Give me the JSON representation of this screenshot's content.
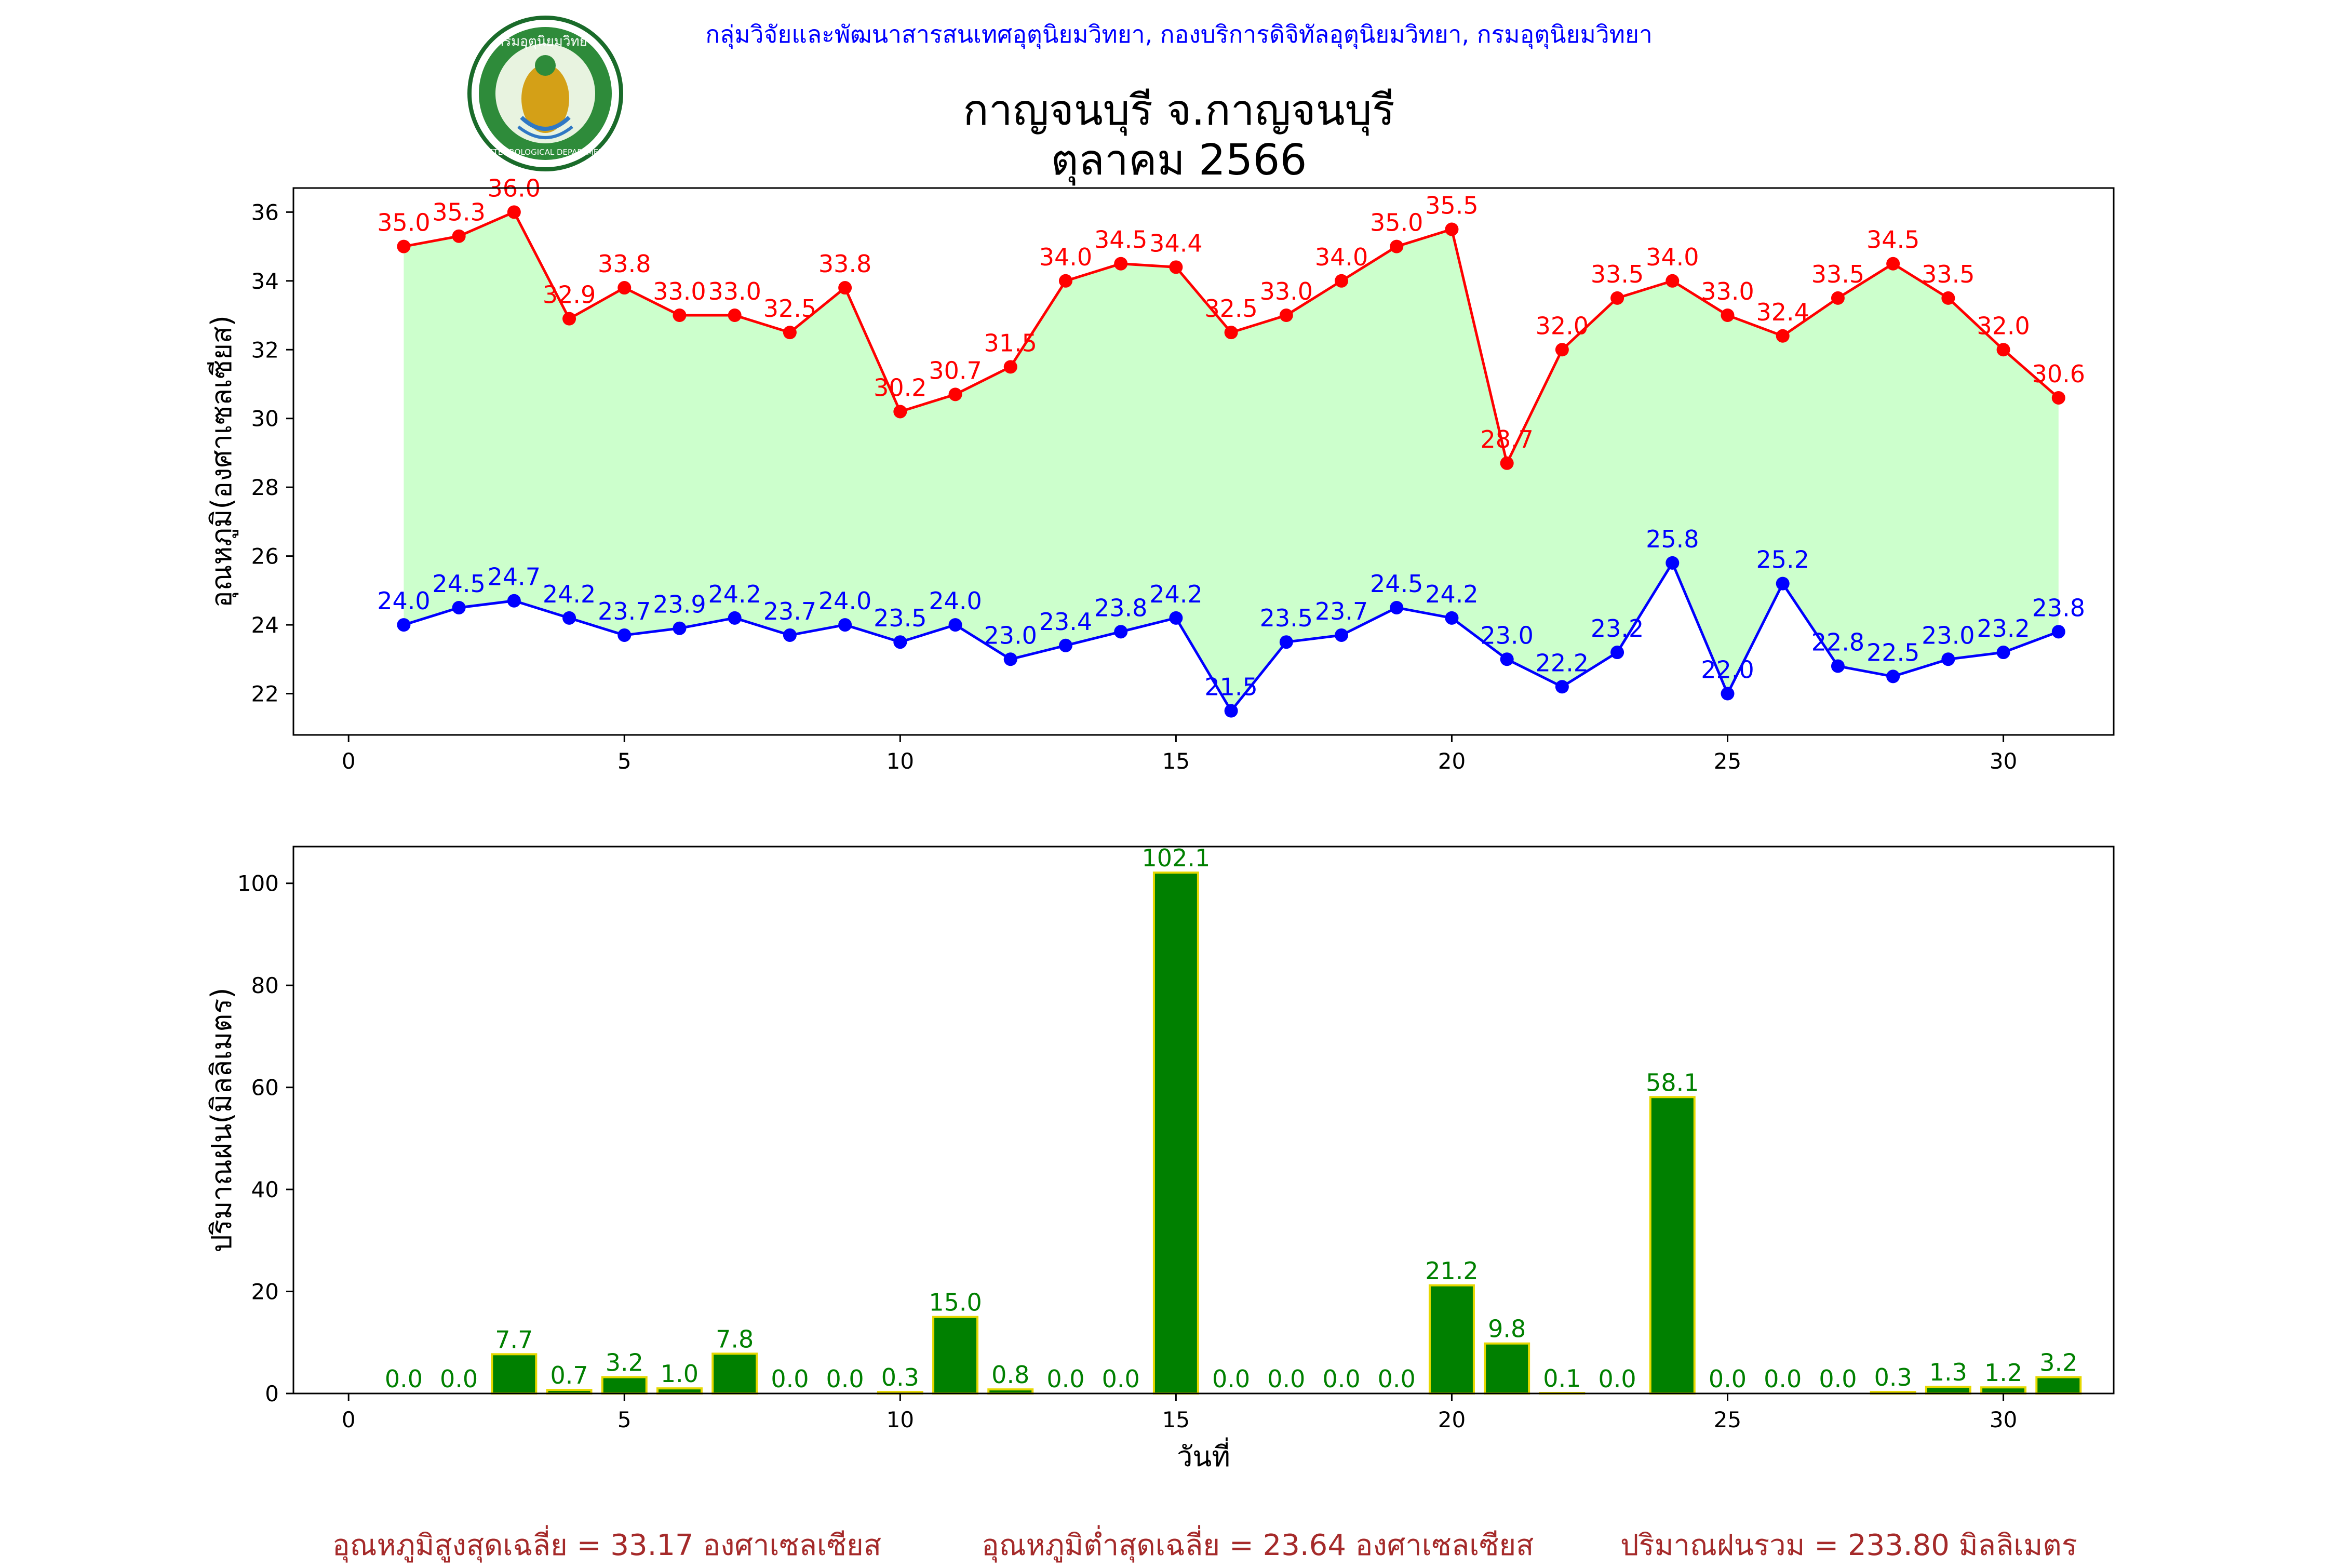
{
  "header": {
    "credit": "กลุ่มวิจัยและพัฒนาสารสนเทศอุตุนิยมวิทยา, กองบริการดิจิทัลอุตุนิยมวิทยา, กรมอุตุนิยมวิทยา",
    "title_line1": "กาญจนบุรี จ.กาญจนบุรี",
    "title_line2": "ตุลาคม 2566",
    "logo_text": "กรมอุตุนิยมวิทยา METEOROLOGICAL DEPARTMENT"
  },
  "footer": {
    "avg_max": "อุณหภูมิสูงสุดเฉลี่ย = 33.17 องศาเซลเซียส",
    "avg_min": "อุณหภูมิต่ำสุดเฉลี่ย = 23.64 องศาเซลเซียส",
    "total_rain": "ปริมาณฝนรวม = 233.80 มิลลิเมตร"
  },
  "colors": {
    "max": "#ff0000",
    "min": "#0000ff",
    "fill": "#ccffcc",
    "rain": "#008000",
    "rain_edge": "#e6d800",
    "footer": "#a52a2a"
  },
  "chart_data": [
    {
      "type": "line",
      "ylabel": "อุณหภูมิ(องศาเซลเซียส)",
      "xlabel": "",
      "xlim": [
        -1,
        32
      ],
      "ylim": [
        20.8,
        36.7
      ],
      "xticks": [
        0,
        5,
        10,
        15,
        20,
        25,
        30
      ],
      "yticks": [
        22,
        24,
        26,
        28,
        30,
        32,
        34,
        36
      ],
      "x": [
        1,
        2,
        3,
        4,
        5,
        6,
        7,
        8,
        9,
        10,
        11,
        12,
        13,
        14,
        15,
        16,
        17,
        18,
        19,
        20,
        21,
        22,
        23,
        24,
        25,
        26,
        27,
        28,
        29,
        30,
        31
      ],
      "series": [
        {
          "values": [
            35.0,
            35.3,
            36.0,
            32.9,
            33.8,
            33.0,
            33.0,
            32.5,
            33.8,
            30.2,
            30.7,
            31.5,
            34.0,
            34.5,
            34.4,
            32.5,
            33.0,
            34.0,
            35.0,
            35.5,
            28.7,
            32.0,
            33.5,
            34.0,
            33.0,
            32.4,
            33.5,
            34.5,
            33.5,
            32.0,
            30.6
          ]
        },
        {
          "values": [
            24.0,
            24.5,
            24.7,
            24.2,
            23.7,
            23.9,
            24.2,
            23.7,
            24.0,
            23.5,
            24.0,
            23.0,
            23.4,
            23.8,
            24.2,
            21.5,
            23.5,
            23.7,
            24.5,
            24.2,
            23.0,
            22.2,
            23.2,
            25.8,
            22.0,
            25.2,
            22.8,
            22.5,
            23.0,
            23.2,
            23.8
          ]
        }
      ]
    },
    {
      "type": "bar",
      "ylabel": "ปริมาณฝน(มิลลิเมตร)",
      "xlabel": "วันที่",
      "xlim": [
        -1,
        32
      ],
      "ylim": [
        0,
        107.2
      ],
      "xticks": [
        0,
        5,
        10,
        15,
        20,
        25,
        30
      ],
      "yticks": [
        0,
        20,
        40,
        60,
        80,
        100
      ],
      "x": [
        1,
        2,
        3,
        4,
        5,
        6,
        7,
        8,
        9,
        10,
        11,
        12,
        13,
        14,
        15,
        16,
        17,
        18,
        19,
        20,
        21,
        22,
        23,
        24,
        25,
        26,
        27,
        28,
        29,
        30,
        31
      ],
      "values": [
        0.0,
        0.0,
        7.7,
        0.7,
        3.2,
        1.0,
        7.8,
        0.0,
        0.0,
        0.3,
        15.0,
        0.8,
        0.0,
        0.0,
        102.1,
        0.0,
        0.0,
        0.0,
        0.0,
        21.2,
        9.8,
        0.1,
        0.0,
        58.1,
        0.0,
        0.0,
        0.0,
        0.3,
        1.3,
        1.2,
        3.2
      ]
    }
  ]
}
